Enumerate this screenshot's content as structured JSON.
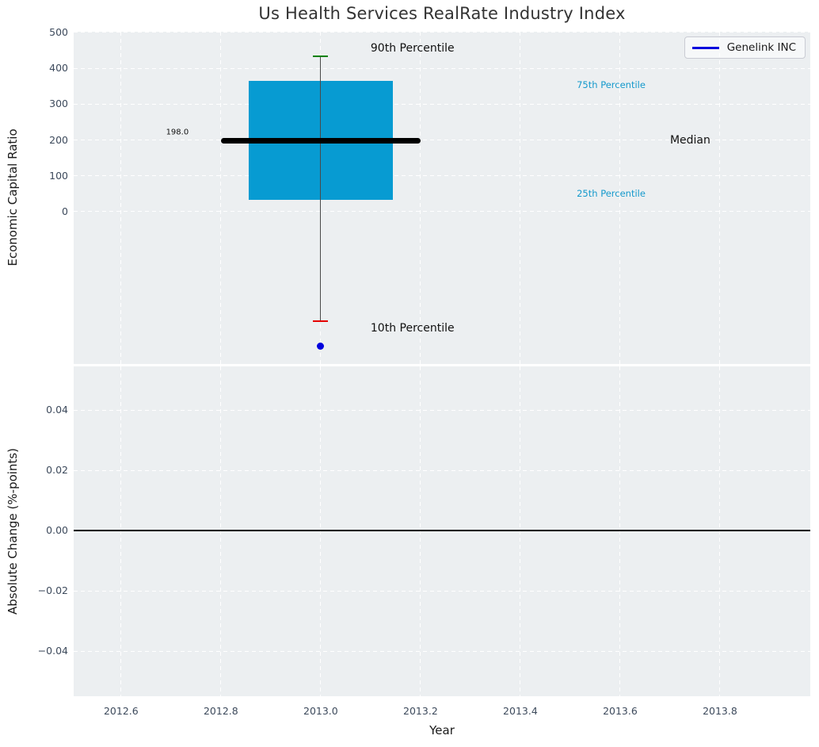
{
  "title": "Us Health Services RealRate Industry Index",
  "legend": {
    "label": "Genelink INC",
    "line_color": "#0000dd"
  },
  "x_axis": {
    "label": "Year",
    "xlim": [
      2012.505,
      2013.981
    ],
    "ticks": [
      2012.6,
      2012.8,
      2013.0,
      2013.2,
      2013.4,
      2013.6,
      2013.8
    ],
    "tick_labels": [
      "2012.6",
      "2012.8",
      "2013.0",
      "2013.2",
      "2013.4",
      "2013.6",
      "2013.8"
    ]
  },
  "chart_data": [
    {
      "type": "boxplot",
      "ylabel": "Economic Capital Ratio",
      "ylim": [
        -425,
        502
      ],
      "ticks": [
        0,
        100,
        200,
        300,
        400,
        500
      ],
      "tick_labels": [
        "0",
        "100",
        "200",
        "300",
        "400",
        "500"
      ],
      "grid": "dashed-white",
      "box": {
        "x_center": 2013.0,
        "p90": 433,
        "q3": 365,
        "median": 198.0,
        "q1": 33,
        "p10": -305,
        "box_left": 2012.855,
        "box_right": 2013.145,
        "median_left": 2012.8,
        "median_right": 2013.2,
        "cap_half_width": 0.015,
        "box_color": "#079bd2",
        "median_color": "#000000",
        "whisker_color": "#4a4a4a",
        "p90_cap_color": "#008000",
        "p10_cap_color": "#e50000"
      },
      "point": {
        "label": "Genelink INC",
        "x": 2013.0,
        "y": -376,
        "color": "#0000dd"
      },
      "annotations": [
        {
          "text": "90th Percentile",
          "x": 2013.1,
          "y": 455,
          "color": "#111111",
          "size": 14
        },
        {
          "text": "10th Percentile",
          "x": 2013.1,
          "y": -325,
          "color": "#111111",
          "size": 14
        },
        {
          "text": "Median",
          "x": 2013.7,
          "y": 200,
          "color": "#111111",
          "size": 14
        },
        {
          "text": "75th Percentile",
          "x": 2013.513,
          "y": 353,
          "color": "#1599cc",
          "size": 11.5
        },
        {
          "text": "25th Percentile",
          "x": 2013.513,
          "y": 50,
          "color": "#1599cc",
          "size": 11.5
        },
        {
          "text": "198.0",
          "x": 2012.69,
          "y": 222,
          "color": "#111111",
          "size": 10
        }
      ]
    },
    {
      "type": "line",
      "ylabel": "Absolute Change (%-points)",
      "ylim": [
        -0.055,
        0.0545
      ],
      "ticks": [
        0.04,
        0.02,
        0.0,
        -0.02,
        -0.04
      ],
      "tick_labels": [
        "0.04",
        "0.02",
        "0.00",
        "−0.02",
        "−0.04"
      ],
      "zero_line": 0.0,
      "zero_line_color": "#000000"
    }
  ],
  "style": {
    "figure_bg": "#ffffff",
    "axes_bg": "#eceff1",
    "grid_color": "#ffffff",
    "tick_color": "#3d4a5c",
    "title_color": "#333333",
    "label_color": "#1a1a1a"
  }
}
